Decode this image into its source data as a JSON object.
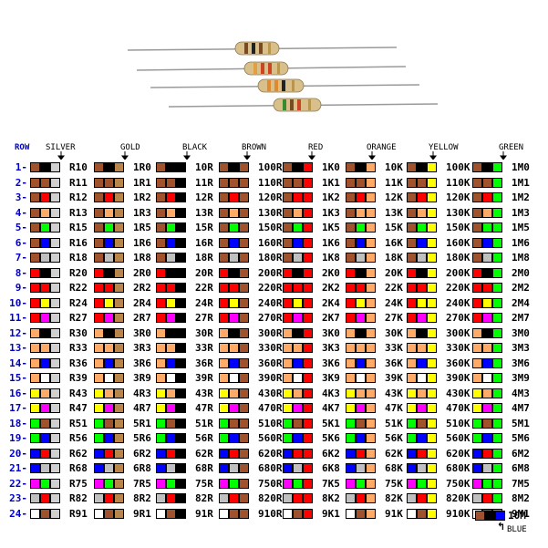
{
  "colors": {
    "silver": "#d0d0d0",
    "gold": "#b8864b",
    "black": "#000000",
    "brown": "#a0522d",
    "red": "#ff0000",
    "orange": "#ffaa66",
    "yellow": "#ffff00",
    "green": "#00ff00",
    "blue": "#0000ff",
    "violet": "#ff00ff",
    "gray": "#c0c0c0",
    "white": "#ffffff",
    "row_label": "#0000cc"
  },
  "header": {
    "row_label": "ROW",
    "column_headings": [
      "SILVER",
      "GOLD",
      "BLACK",
      "BROWN",
      "RED",
      "ORANGE",
      "YELLOW",
      "GREEN"
    ]
  },
  "footer": {
    "value": "10M",
    "label": "BLUE"
  },
  "row_numbers": [
    "1-",
    "2-",
    "3-",
    "4-",
    "5-",
    "6-",
    "7-",
    "8-",
    "9-",
    "10-",
    "11-",
    "12-",
    "13-",
    "14-",
    "15-",
    "16-",
    "17-",
    "18-",
    "19-",
    "20-",
    "21-",
    "22-",
    "23-",
    "24-"
  ],
  "columns": [
    {
      "labels": [
        "R10",
        "R11",
        "R12",
        "R13",
        "R15",
        "R16",
        "R18",
        "R20",
        "R22",
        "R24",
        "R27",
        "R30",
        "R33",
        "R36",
        "R39",
        "R43",
        "R47",
        "R51",
        "R56",
        "R62",
        "R68",
        "R75",
        "R82",
        "R91"
      ],
      "bands": [
        [
          "brown",
          "black",
          "silver"
        ],
        [
          "brown",
          "brown",
          "silver"
        ],
        [
          "brown",
          "red",
          "silver"
        ],
        [
          "brown",
          "orange",
          "silver"
        ],
        [
          "brown",
          "green",
          "silver"
        ],
        [
          "brown",
          "blue",
          "silver"
        ],
        [
          "brown",
          "gray",
          "silver"
        ],
        [
          "red",
          "black",
          "silver"
        ],
        [
          "red",
          "red",
          "silver"
        ],
        [
          "red",
          "yellow",
          "silver"
        ],
        [
          "red",
          "violet",
          "silver"
        ],
        [
          "orange",
          "black",
          "silver"
        ],
        [
          "orange",
          "orange",
          "silver"
        ],
        [
          "orange",
          "blue",
          "silver"
        ],
        [
          "orange",
          "white",
          "silver"
        ],
        [
          "yellow",
          "orange",
          "silver"
        ],
        [
          "yellow",
          "violet",
          "silver"
        ],
        [
          "green",
          "brown",
          "silver"
        ],
        [
          "green",
          "blue",
          "silver"
        ],
        [
          "blue",
          "red",
          "silver"
        ],
        [
          "blue",
          "gray",
          "silver"
        ],
        [
          "violet",
          "green",
          "silver"
        ],
        [
          "gray",
          "red",
          "silver"
        ],
        [
          "white",
          "brown",
          "silver"
        ]
      ]
    },
    {
      "labels": [
        "1R0",
        "1R1",
        "1R2",
        "1R3",
        "1R5",
        "1R6",
        "1R8",
        "2R0",
        "2R2",
        "2R4",
        "2R7",
        "3R0",
        "3R3",
        "3R6",
        "3R9",
        "4R3",
        "4R7",
        "5R1",
        "5R6",
        "6R2",
        "6R8",
        "7R5",
        "8R2",
        "9R1"
      ],
      "bands": [
        [
          "brown",
          "black",
          "gold"
        ],
        [
          "brown",
          "brown",
          "gold"
        ],
        [
          "brown",
          "red",
          "gold"
        ],
        [
          "brown",
          "orange",
          "gold"
        ],
        [
          "brown",
          "green",
          "gold"
        ],
        [
          "brown",
          "blue",
          "gold"
        ],
        [
          "brown",
          "gray",
          "gold"
        ],
        [
          "red",
          "black",
          "gold"
        ],
        [
          "red",
          "red",
          "gold"
        ],
        [
          "red",
          "yellow",
          "gold"
        ],
        [
          "red",
          "violet",
          "gold"
        ],
        [
          "orange",
          "black",
          "gold"
        ],
        [
          "orange",
          "orange",
          "gold"
        ],
        [
          "orange",
          "blue",
          "gold"
        ],
        [
          "orange",
          "white",
          "gold"
        ],
        [
          "yellow",
          "orange",
          "gold"
        ],
        [
          "yellow",
          "violet",
          "gold"
        ],
        [
          "green",
          "brown",
          "gold"
        ],
        [
          "green",
          "blue",
          "gold"
        ],
        [
          "blue",
          "red",
          "gold"
        ],
        [
          "blue",
          "gray",
          "gold"
        ],
        [
          "violet",
          "green",
          "gold"
        ],
        [
          "gray",
          "red",
          "gold"
        ],
        [
          "white",
          "brown",
          "gold"
        ]
      ]
    },
    {
      "labels": [
        "10R",
        "11R",
        "12R",
        "13R",
        "15R",
        "16R",
        "18R",
        "20R",
        "22R",
        "24R",
        "27R",
        "30R",
        "33R",
        "36R",
        "39R",
        "43R",
        "47R",
        "51R",
        "56R",
        "62R",
        "68R",
        "75R",
        "82R",
        "91R"
      ],
      "bands": [
        [
          "brown",
          "black",
          "black"
        ],
        [
          "brown",
          "brown",
          "black"
        ],
        [
          "brown",
          "red",
          "black"
        ],
        [
          "brown",
          "orange",
          "black"
        ],
        [
          "brown",
          "green",
          "black"
        ],
        [
          "brown",
          "blue",
          "black"
        ],
        [
          "brown",
          "gray",
          "black"
        ],
        [
          "red",
          "black",
          "black"
        ],
        [
          "red",
          "red",
          "black"
        ],
        [
          "red",
          "yellow",
          "black"
        ],
        [
          "red",
          "violet",
          "black"
        ],
        [
          "orange",
          "black",
          "black"
        ],
        [
          "orange",
          "orange",
          "black"
        ],
        [
          "orange",
          "blue",
          "black"
        ],
        [
          "orange",
          "white",
          "black"
        ],
        [
          "yellow",
          "orange",
          "black"
        ],
        [
          "yellow",
          "violet",
          "black"
        ],
        [
          "green",
          "brown",
          "black"
        ],
        [
          "green",
          "blue",
          "black"
        ],
        [
          "blue",
          "red",
          "black"
        ],
        [
          "blue",
          "gray",
          "black"
        ],
        [
          "violet",
          "green",
          "black"
        ],
        [
          "gray",
          "red",
          "black"
        ],
        [
          "white",
          "brown",
          "black"
        ]
      ]
    },
    {
      "labels": [
        "100R",
        "110R",
        "120R",
        "130R",
        "150R",
        "160R",
        "180R",
        "200R",
        "220R",
        "240R",
        "270R",
        "300R",
        "330R",
        "360R",
        "390R",
        "430R",
        "470R",
        "510R",
        "560R",
        "620R",
        "680R",
        "750R",
        "820R",
        "910R"
      ],
      "bands": [
        [
          "brown",
          "black",
          "brown"
        ],
        [
          "brown",
          "brown",
          "brown"
        ],
        [
          "brown",
          "red",
          "brown"
        ],
        [
          "brown",
          "orange",
          "brown"
        ],
        [
          "brown",
          "green",
          "brown"
        ],
        [
          "brown",
          "blue",
          "brown"
        ],
        [
          "brown",
          "gray",
          "brown"
        ],
        [
          "red",
          "black",
          "brown"
        ],
        [
          "red",
          "red",
          "brown"
        ],
        [
          "red",
          "yellow",
          "brown"
        ],
        [
          "red",
          "violet",
          "brown"
        ],
        [
          "orange",
          "black",
          "brown"
        ],
        [
          "orange",
          "orange",
          "brown"
        ],
        [
          "orange",
          "blue",
          "brown"
        ],
        [
          "orange",
          "white",
          "brown"
        ],
        [
          "yellow",
          "orange",
          "brown"
        ],
        [
          "yellow",
          "violet",
          "brown"
        ],
        [
          "green",
          "brown",
          "brown"
        ],
        [
          "green",
          "blue",
          "brown"
        ],
        [
          "blue",
          "red",
          "brown"
        ],
        [
          "blue",
          "gray",
          "brown"
        ],
        [
          "violet",
          "green",
          "brown"
        ],
        [
          "gray",
          "red",
          "brown"
        ],
        [
          "white",
          "brown",
          "brown"
        ]
      ]
    },
    {
      "labels": [
        "1K0",
        "1K1",
        "1K2",
        "1K3",
        "1K5",
        "1K6",
        "1K8",
        "2K0",
        "2K2",
        "2K4",
        "2K7",
        "3K0",
        "3K3",
        "3K6",
        "3K9",
        "4K3",
        "4K7",
        "5K1",
        "5K6",
        "6K2",
        "6K8",
        "7K5",
        "8K2",
        "9K1"
      ],
      "bands": [
        [
          "brown",
          "black",
          "red"
        ],
        [
          "brown",
          "brown",
          "red"
        ],
        [
          "brown",
          "red",
          "red"
        ],
        [
          "brown",
          "orange",
          "red"
        ],
        [
          "brown",
          "green",
          "red"
        ],
        [
          "brown",
          "blue",
          "red"
        ],
        [
          "brown",
          "gray",
          "red"
        ],
        [
          "red",
          "black",
          "red"
        ],
        [
          "red",
          "red",
          "red"
        ],
        [
          "red",
          "yellow",
          "red"
        ],
        [
          "red",
          "violet",
          "red"
        ],
        [
          "orange",
          "black",
          "red"
        ],
        [
          "orange",
          "orange",
          "red"
        ],
        [
          "orange",
          "blue",
          "red"
        ],
        [
          "orange",
          "white",
          "red"
        ],
        [
          "yellow",
          "orange",
          "red"
        ],
        [
          "yellow",
          "violet",
          "red"
        ],
        [
          "green",
          "brown",
          "red"
        ],
        [
          "green",
          "blue",
          "red"
        ],
        [
          "blue",
          "red",
          "red"
        ],
        [
          "blue",
          "gray",
          "red"
        ],
        [
          "violet",
          "green",
          "red"
        ],
        [
          "gray",
          "red",
          "red"
        ],
        [
          "white",
          "brown",
          "red"
        ]
      ]
    },
    {
      "labels": [
        "10K",
        "11K",
        "12K",
        "13K",
        "15K",
        "16K",
        "18K",
        "20K",
        "22K",
        "24K",
        "27K",
        "30K",
        "33K",
        "36K",
        "39K",
        "43K",
        "47K",
        "51K",
        "56K",
        "62K",
        "68K",
        "75K",
        "82K",
        "91K"
      ],
      "bands": [
        [
          "brown",
          "black",
          "orange"
        ],
        [
          "brown",
          "brown",
          "orange"
        ],
        [
          "brown",
          "red",
          "orange"
        ],
        [
          "brown",
          "orange",
          "orange"
        ],
        [
          "brown",
          "green",
          "orange"
        ],
        [
          "brown",
          "blue",
          "orange"
        ],
        [
          "brown",
          "gray",
          "orange"
        ],
        [
          "red",
          "black",
          "orange"
        ],
        [
          "red",
          "red",
          "orange"
        ],
        [
          "red",
          "yellow",
          "orange"
        ],
        [
          "red",
          "violet",
          "orange"
        ],
        [
          "orange",
          "black",
          "orange"
        ],
        [
          "orange",
          "orange",
          "orange"
        ],
        [
          "orange",
          "blue",
          "orange"
        ],
        [
          "orange",
          "white",
          "orange"
        ],
        [
          "yellow",
          "orange",
          "orange"
        ],
        [
          "yellow",
          "violet",
          "orange"
        ],
        [
          "green",
          "brown",
          "orange"
        ],
        [
          "green",
          "blue",
          "orange"
        ],
        [
          "blue",
          "red",
          "orange"
        ],
        [
          "blue",
          "gray",
          "orange"
        ],
        [
          "violet",
          "green",
          "orange"
        ],
        [
          "gray",
          "red",
          "orange"
        ],
        [
          "white",
          "brown",
          "orange"
        ]
      ]
    },
    {
      "labels": [
        "100K",
        "110K",
        "120K",
        "130K",
        "150K",
        "160K",
        "180K",
        "200K",
        "220K",
        "240K",
        "270K",
        "300K",
        "330K",
        "360K",
        "390K",
        "430K",
        "470K",
        "510K",
        "560K",
        "620K",
        "680K",
        "750K",
        "820K",
        "910K"
      ],
      "bands": [
        [
          "brown",
          "black",
          "yellow"
        ],
        [
          "brown",
          "brown",
          "yellow"
        ],
        [
          "brown",
          "red",
          "yellow"
        ],
        [
          "brown",
          "orange",
          "yellow"
        ],
        [
          "brown",
          "green",
          "yellow"
        ],
        [
          "brown",
          "blue",
          "yellow"
        ],
        [
          "brown",
          "gray",
          "yellow"
        ],
        [
          "red",
          "black",
          "yellow"
        ],
        [
          "red",
          "red",
          "yellow"
        ],
        [
          "red",
          "yellow",
          "yellow"
        ],
        [
          "red",
          "violet",
          "yellow"
        ],
        [
          "orange",
          "black",
          "yellow"
        ],
        [
          "orange",
          "orange",
          "yellow"
        ],
        [
          "orange",
          "blue",
          "yellow"
        ],
        [
          "orange",
          "white",
          "yellow"
        ],
        [
          "yellow",
          "orange",
          "yellow"
        ],
        [
          "yellow",
          "violet",
          "yellow"
        ],
        [
          "green",
          "brown",
          "yellow"
        ],
        [
          "green",
          "blue",
          "yellow"
        ],
        [
          "blue",
          "red",
          "yellow"
        ],
        [
          "blue",
          "gray",
          "yellow"
        ],
        [
          "violet",
          "green",
          "yellow"
        ],
        [
          "gray",
          "red",
          "yellow"
        ],
        [
          "white",
          "brown",
          "yellow"
        ]
      ]
    },
    {
      "labels": [
        "1M0",
        "1M1",
        "1M2",
        "1M3",
        "1M5",
        "1M6",
        "1M8",
        "2M0",
        "2M2",
        "2M4",
        "2M7",
        "3M0",
        "3M3",
        "3M6",
        "3M9",
        "4M3",
        "4M7",
        "5M1",
        "5M6",
        "6M2",
        "6M8",
        "7M5",
        "8M2",
        "9M1"
      ],
      "bands": [
        [
          "brown",
          "black",
          "green"
        ],
        [
          "brown",
          "brown",
          "green"
        ],
        [
          "brown",
          "red",
          "green"
        ],
        [
          "brown",
          "orange",
          "green"
        ],
        [
          "brown",
          "green",
          "green"
        ],
        [
          "brown",
          "blue",
          "green"
        ],
        [
          "brown",
          "gray",
          "green"
        ],
        [
          "red",
          "black",
          "green"
        ],
        [
          "red",
          "red",
          "green"
        ],
        [
          "red",
          "yellow",
          "green"
        ],
        [
          "red",
          "violet",
          "green"
        ],
        [
          "orange",
          "black",
          "green"
        ],
        [
          "orange",
          "orange",
          "green"
        ],
        [
          "orange",
          "blue",
          "green"
        ],
        [
          "orange",
          "white",
          "green"
        ],
        [
          "yellow",
          "orange",
          "green"
        ],
        [
          "yellow",
          "violet",
          "green"
        ],
        [
          "green",
          "brown",
          "green"
        ],
        [
          "green",
          "blue",
          "green"
        ],
        [
          "blue",
          "red",
          "green"
        ],
        [
          "blue",
          "gray",
          "green"
        ],
        [
          "violet",
          "green",
          "green"
        ],
        [
          "gray",
          "red",
          "green"
        ],
        [
          "white",
          "brown",
          "green"
        ]
      ]
    }
  ],
  "footer_bands": [
    "brown",
    "black",
    "blue"
  ]
}
